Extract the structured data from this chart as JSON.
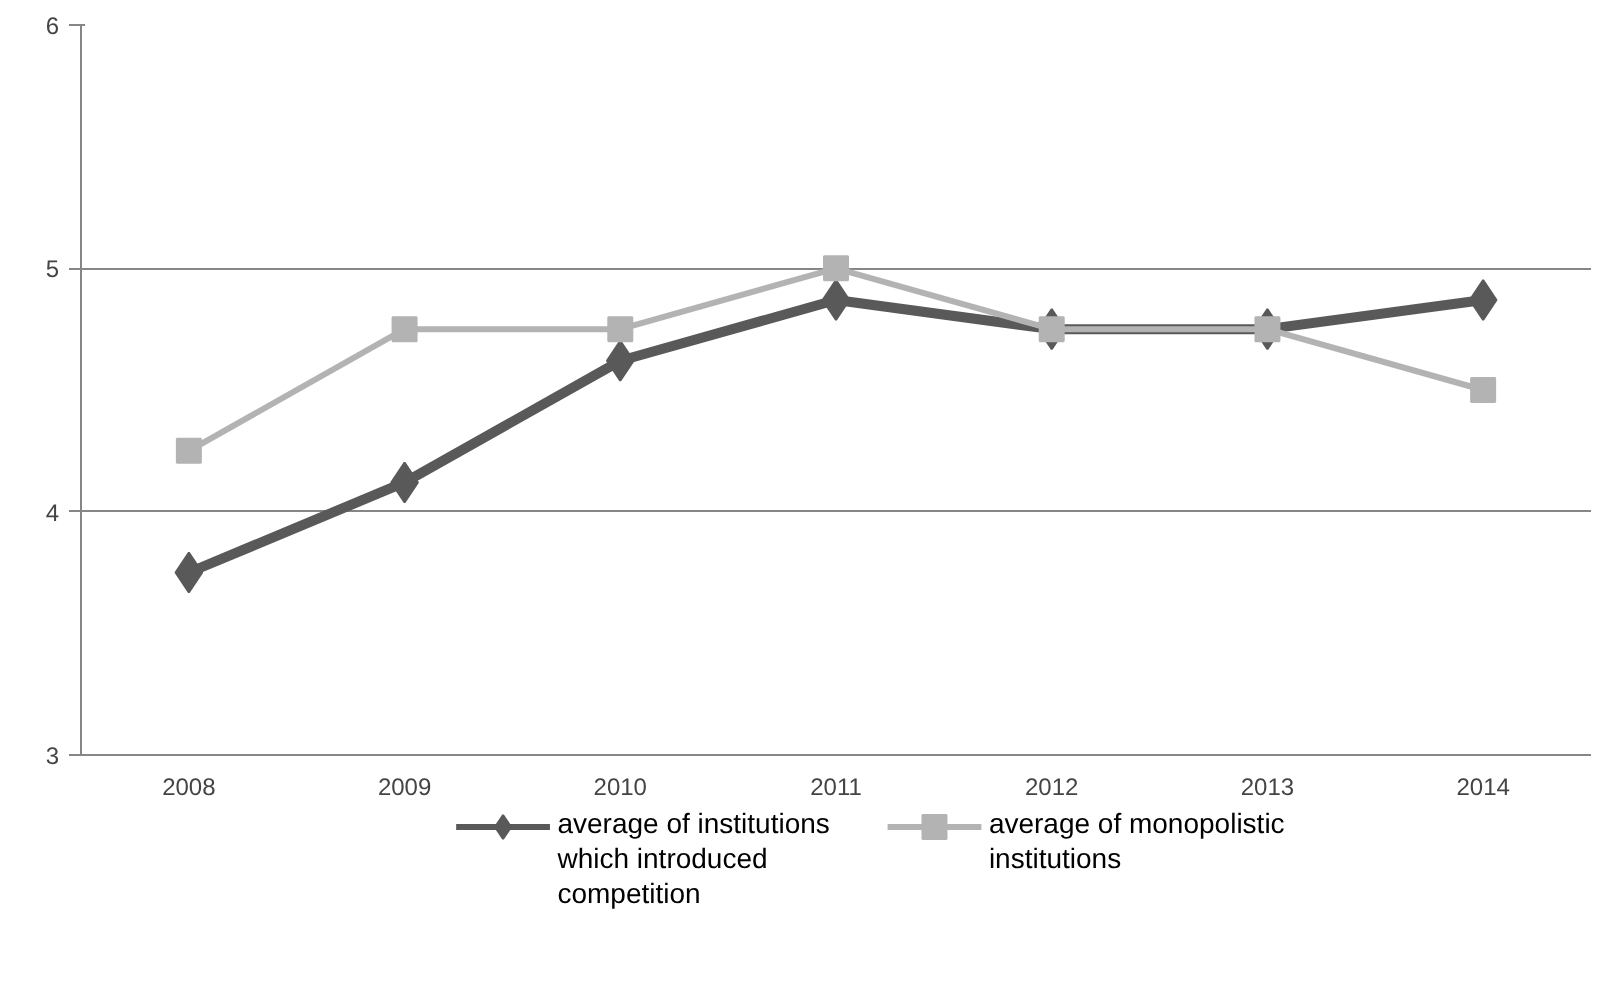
{
  "chart_data": {
    "type": "line",
    "categories": [
      "2008",
      "2009",
      "2010",
      "2011",
      "2012",
      "2013",
      "2014"
    ],
    "series": [
      {
        "name": "average of institutions which introduced competition",
        "color": "#595959",
        "marker": "diamond",
        "values": [
          3.75,
          4.12,
          4.62,
          4.87,
          4.75,
          4.75,
          4.87
        ]
      },
      {
        "name": "average of monopolistic institutions",
        "color": "#b3b3b3",
        "marker": "square",
        "values": [
          4.25,
          4.75,
          4.75,
          5.0,
          4.75,
          4.75,
          4.5
        ]
      }
    ],
    "ylim": [
      3,
      6
    ],
    "yticks": [
      3,
      4,
      5,
      6
    ],
    "grid": "y",
    "legend": "bottom",
    "line_style": "solid"
  }
}
